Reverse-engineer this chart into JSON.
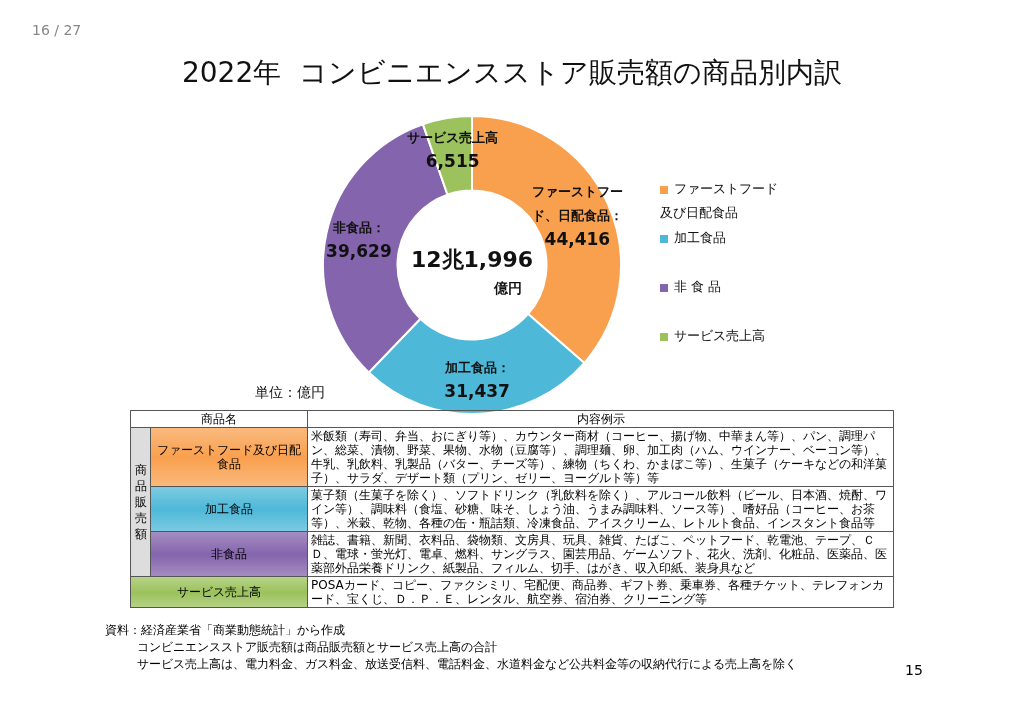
{
  "chart_data": {
    "type": "donut",
    "title": "2022年  コンビニエンスストア販売額の商品別内訳",
    "categories": [
      "ファーストフード及び日配食品",
      "加工食品",
      "非 食 品",
      "サービス売上高"
    ],
    "values": [
      44416,
      31437,
      39629,
      6515
    ],
    "colors": [
      "#f9a04e",
      "#4db8d8",
      "#8464ac",
      "#9bc25c"
    ],
    "value_labels": [
      "ファーストフード、日配食品：\n44,416",
      "加工食品：\n31,437",
      "非食品：\n39,629",
      "サービス売上高\n6,515"
    ],
    "legend": "right",
    "annotations": [
      "16 / 27",
      "12兆1,996",
      "億円",
      "単位：億円",
      "商品名",
      "内容例示",
      "商品販売額",
      "ファーストフード及び日配食品",
      "米飯類（寿司、弁当、おにぎり等）、カウンター商材（コーヒー、揚げ物、中華まん等）、パン、調理パン、総菜、漬物、野菜、果物、水物（豆腐等）、調理麺、卵、加工肉（ハム、ウインナー、ベーコン等）、牛乳、乳飲料、乳製品（バター、チーズ等）、練物（ちくわ、かまぼこ等）、生菓子（ケーキなどの和洋菓子）、サラダ、デザート類（プリン、ゼリー、ヨーグルト等）等",
      "加工食品",
      "菓子類（生菓子を除く）、ソフトドリンク（乳飲料を除く）、アルコール飲料（ビール、日本酒、焼酎、ワイン等）、調味料（食塩、砂糖、味そ、しょう油、うまみ調味料、ソース等）、嗜好品（コーヒー、お茶等）、米穀、乾物、各種の缶・瓶詰類、冷凍食品、アイスクリーム、レトルト食品、インスタント食品等",
      "非食品",
      "雑誌、書籍、新聞、衣料品、袋物類、文房具、玩具、雑貨、たばこ、ペットフード、乾電池、テープ、ＣＤ、電球・蛍光灯、電卓、燃料、サングラス、園芸用品、ゲームソフト、花火、洗剤、化粧品、医薬品、医薬部外品栄養ドリンク、紙製品、フィルム、切手、はがき、収入印紙、装身具など",
      "サービス売上高",
      "POSAカード、コピー、ファクシミリ、宅配便、商品券、ギフト券、乗車券、各種チケット、テレフォンカード、宝くじ、Ｄ．Ｐ．Ｅ、レンタル、航空券、宿泊券、クリーニング等",
      "資料：経済産業省「商業動態統計」から作成",
      "コンビニエンスストア販売額は商品販売額とサービス売上高の合計",
      "サービス売上高は、電力料金、ガス料金、放送受信料、電話料金、水道料金など公共料金等の収納代行による売上高を除く",
      "15"
    ]
  }
}
